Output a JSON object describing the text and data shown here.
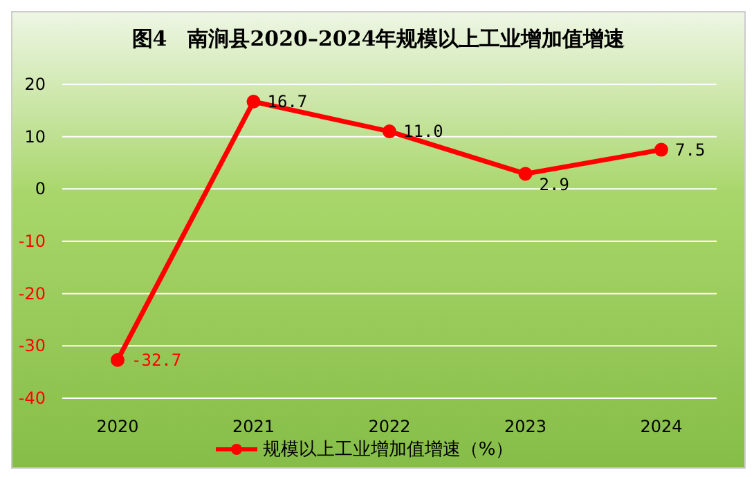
{
  "chart_data": {
    "type": "line",
    "title": "图4　南涧县2020–2024年规模以上工业增加值增速",
    "categories": [
      "2020",
      "2021",
      "2022",
      "2023",
      "2024"
    ],
    "series": [
      {
        "name": "规模以上工业增加值增速（%）",
        "color": "#ff0000",
        "values": [
          -32.7,
          16.7,
          11.0,
          2.9,
          7.5
        ],
        "value_labels": [
          "-32.7",
          "16.7",
          "11.0",
          "2.9",
          "7.5"
        ]
      }
    ],
    "ylim": [
      -40,
      20
    ],
    "yticks": [
      -40,
      -30,
      -20,
      -10,
      0,
      10,
      20
    ],
    "grid": "y",
    "legend": "bottom",
    "marker": "circle",
    "line_style": "solid"
  }
}
